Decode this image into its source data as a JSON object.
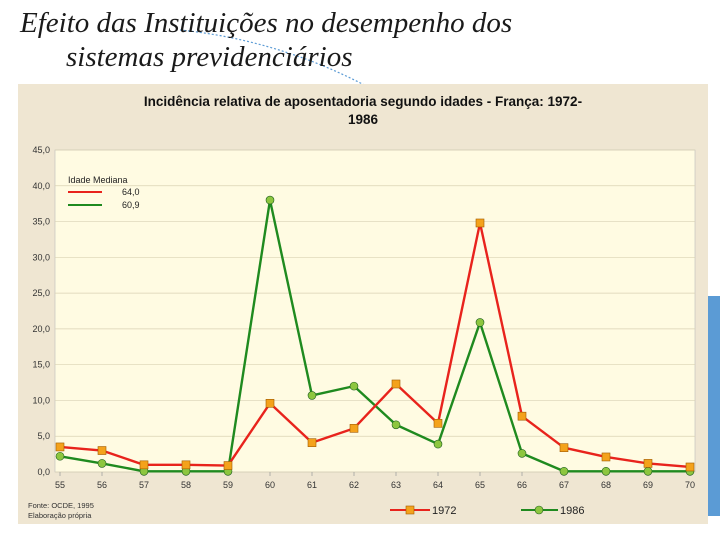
{
  "slide": {
    "title_line1": "Efeito das Instituições no desempenho dos",
    "title_line2": "sistemas previdenciários"
  },
  "colors": {
    "series_1972": "#e8231c",
    "series_1986": "#1f8a1f",
    "marker_1972": "#f4a21b",
    "marker_1986": "#8dc63f",
    "plot_bg": "#fffbe2",
    "panel_bg": "#efe6d2",
    "accent": "#5b9bd5"
  },
  "chart_data": {
    "type": "line",
    "title": "Incidência relativa de aposentadoria segundo idades - França: 1972-1986",
    "title_line1": "Incidência relativa de aposentadoria segundo idades - França: 1972-",
    "title_line2": "1986",
    "x": [
      55,
      56,
      57,
      58,
      59,
      60,
      61,
      62,
      63,
      64,
      65,
      66,
      67,
      68,
      69,
      70
    ],
    "x_tick_labels": [
      "55",
      "56",
      "57",
      "58",
      "59",
      "60",
      "61",
      "62",
      "63",
      "64",
      "65",
      "66",
      "67",
      "68",
      "69",
      "70"
    ],
    "ylim": [
      0,
      45
    ],
    "y_ticks": [
      "0,0",
      "5,0",
      "10,0",
      "15,0",
      "20,0",
      "25,0",
      "30,0",
      "35,0",
      "40,0",
      "45,0"
    ],
    "grid": true,
    "series": [
      {
        "name": "1972",
        "values": [
          3.5,
          3.0,
          1.0,
          1.0,
          0.9,
          9.6,
          4.1,
          6.1,
          12.3,
          6.8,
          34.8,
          7.8,
          3.4,
          2.1,
          1.2,
          0.7
        ]
      },
      {
        "name": "1986",
        "values": [
          2.2,
          1.2,
          0.1,
          0.1,
          0.1,
          38.0,
          10.7,
          12.0,
          6.6,
          3.9,
          20.9,
          2.6,
          0.1,
          0.1,
          0.1,
          0.1
        ]
      }
    ],
    "legend_inset": {
      "title": "Idade Mediana",
      "entries": [
        {
          "label": "64,0",
          "series": "1972"
        },
        {
          "label": "60,9",
          "series": "1986"
        }
      ],
      "placement": "top-left"
    },
    "legend_bottom": {
      "entries": [
        {
          "label": "1972",
          "series": "1972"
        },
        {
          "label": "1986",
          "series": "1986"
        }
      ],
      "placement": "bottom-center"
    },
    "source_lines": [
      "Fonte: OCDE, 1995",
      "Elaboração própria"
    ]
  }
}
